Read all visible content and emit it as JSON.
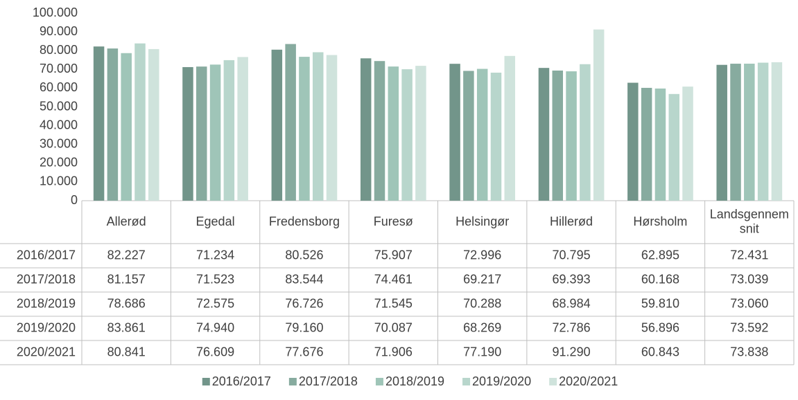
{
  "chart_data": {
    "type": "bar",
    "categories": [
      "Allerød",
      "Egedal",
      "Fredensborg",
      "Furesø",
      "Helsingør",
      "Hillerød",
      "Hørsholm",
      "Landsgennemsnit"
    ],
    "series": [
      {
        "name": "2016/2017",
        "color": "#72958a",
        "values": [
          82227,
          71234,
          80526,
          75907,
          72996,
          70795,
          62895,
          72431
        ],
        "value_labels": [
          "82.227",
          "71.234",
          "80.526",
          "75.907",
          "72.996",
          "70.795",
          "62.895",
          "72.431"
        ]
      },
      {
        "name": "2017/2018",
        "color": "#87ab9f",
        "values": [
          81157,
          71523,
          83544,
          74461,
          69217,
          69393,
          60168,
          73039
        ],
        "value_labels": [
          "81.157",
          "71.523",
          "83.544",
          "74.461",
          "69.217",
          "69.393",
          "60.168",
          "73.039"
        ]
      },
      {
        "name": "2018/2019",
        "color": "#9fc5b8",
        "values": [
          78686,
          72575,
          76726,
          71545,
          70288,
          68984,
          59810,
          73060
        ],
        "value_labels": [
          "78.686",
          "72.575",
          "76.726",
          "71.545",
          "70.288",
          "68.984",
          "59.810",
          "73.060"
        ]
      },
      {
        "name": "2019/2020",
        "color": "#b8d6cc",
        "values": [
          83861,
          74940,
          79160,
          70087,
          68269,
          72786,
          56896,
          73592
        ],
        "value_labels": [
          "83.861",
          "74.940",
          "79.160",
          "70.087",
          "68.269",
          "72.786",
          "56.896",
          "73.592"
        ]
      },
      {
        "name": "2020/2021",
        "color": "#cfe3dc",
        "values": [
          80841,
          76609,
          77676,
          71906,
          77190,
          91290,
          60843,
          73838
        ],
        "value_labels": [
          "80.841",
          "76.609",
          "77.676",
          "71.906",
          "77.190",
          "91.290",
          "60.843",
          "73.838"
        ]
      }
    ],
    "ylim": [
      0,
      100000
    ],
    "yticks": [
      0,
      {
        "value": 10000,
        "label": "10.000"
      },
      {
        "value": 20000,
        "label": "20.000"
      },
      {
        "value": 30000,
        "label": "30.000"
      },
      {
        "value": 40000,
        "label": "40.000"
      },
      {
        "value": 50000,
        "label": "50.000"
      },
      {
        "value": 60000,
        "label": "60.000"
      },
      {
        "value": 70000,
        "label": "70.000"
      },
      {
        "value": 80000,
        "label": "80.000"
      },
      {
        "value": 90000,
        "label": "90.000"
      },
      {
        "value": 100000,
        "label": "100.000"
      }
    ],
    "grid": false,
    "legend": "bottom"
  }
}
